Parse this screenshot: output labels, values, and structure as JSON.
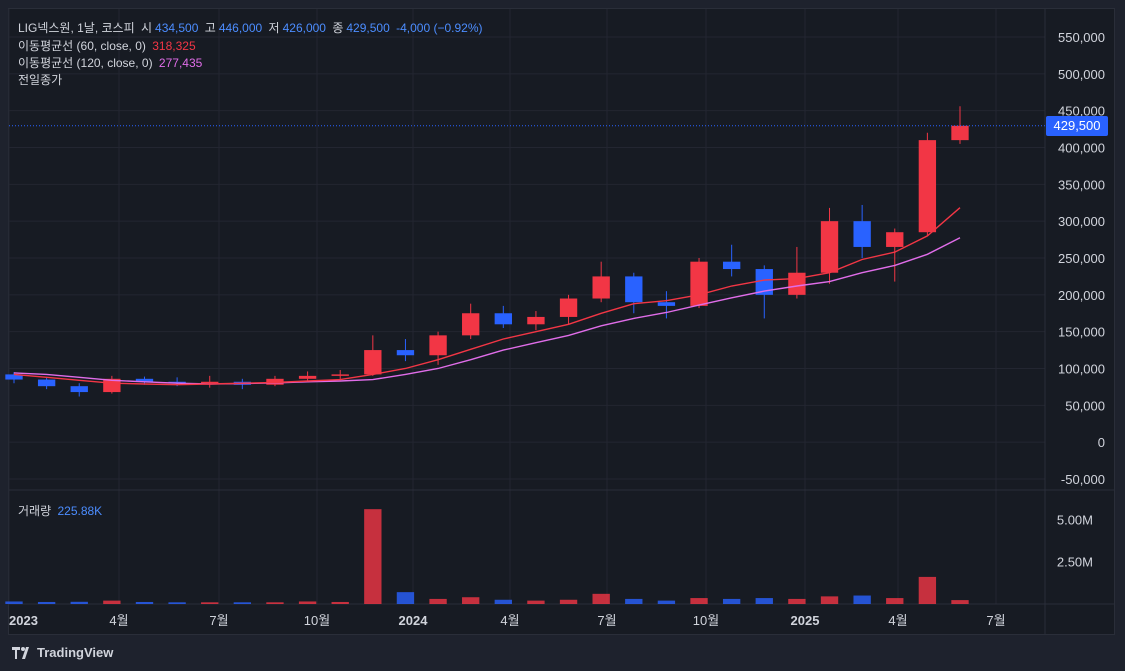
{
  "legend": {
    "symbol": "LIG넥스원, 1날, 코스피",
    "open_label": "시",
    "open": "434,500",
    "high_label": "고",
    "high": "446,000",
    "low_label": "저",
    "low": "426,000",
    "close_label": "종",
    "close": "429,500",
    "change": "-4,000 (−0.92%)",
    "ma60_label": "이동평균선 (60, close, 0)",
    "ma60_value": "318,325",
    "ma120_label": "이동평균선 (120, close, 0)",
    "ma120_value": "277,435",
    "prev_close_label": "전일종가",
    "volume_label": "거래량",
    "volume_value": "225.88K"
  },
  "price_tag": "429,500",
  "footer_brand": "TradingView",
  "colors": {
    "up": "#f23645",
    "down": "#2962ff",
    "ma60": "#f23645",
    "ma120": "#e06de9",
    "background": "#171b23",
    "grid": "#232631",
    "axis_text": "#d1d4dc"
  },
  "chart_data": {
    "type": "candlestick",
    "title": "LIG넥스원, 1날, 코스피",
    "y_axis_labels": [
      "550,000",
      "500,000",
      "450,000",
      "400,000",
      "350,000",
      "300,000",
      "250,000",
      "200,000",
      "150,000",
      "100,000",
      "50,000",
      "0",
      "-50,000"
    ],
    "ylim": [
      -50000,
      550000
    ],
    "volume_axis_labels": [
      "5.00M",
      "2.50M"
    ],
    "x_axis_labels": [
      "2023",
      "4월",
      "7월",
      "10월",
      "2024",
      "4월",
      "7월",
      "10월",
      "2025",
      "4월",
      "7월"
    ],
    "last_close": 429500,
    "price_series": [
      {
        "date": "2023-01",
        "open": 92000,
        "high": 95000,
        "low": 80000,
        "close": 85000
      },
      {
        "date": "2023-02",
        "open": 85000,
        "high": 88000,
        "low": 72000,
        "close": 76000
      },
      {
        "date": "2023-03",
        "open": 76000,
        "high": 80000,
        "low": 62000,
        "close": 68000
      },
      {
        "date": "2023-04",
        "open": 68000,
        "high": 90000,
        "low": 66000,
        "close": 86000
      },
      {
        "date": "2023-05",
        "open": 86000,
        "high": 89000,
        "low": 78000,
        "close": 82000
      },
      {
        "date": "2023-06",
        "open": 82000,
        "high": 88000,
        "low": 76000,
        "close": 80000
      },
      {
        "date": "2023-07",
        "open": 80000,
        "high": 90000,
        "low": 74000,
        "close": 82000
      },
      {
        "date": "2023-08",
        "open": 82000,
        "high": 86000,
        "low": 72000,
        "close": 78000
      },
      {
        "date": "2023-09",
        "open": 78000,
        "high": 90000,
        "low": 76000,
        "close": 86000
      },
      {
        "date": "2023-10",
        "open": 86000,
        "high": 96000,
        "low": 82000,
        "close": 90000
      },
      {
        "date": "2023-11",
        "open": 90000,
        "high": 98000,
        "low": 84000,
        "close": 92000
      },
      {
        "date": "2023-12",
        "open": 92000,
        "high": 145000,
        "low": 90000,
        "close": 125000
      },
      {
        "date": "2024-01",
        "open": 125000,
        "high": 140000,
        "low": 110000,
        "close": 118000
      },
      {
        "date": "2024-02",
        "open": 118000,
        "high": 150000,
        "low": 105000,
        "close": 145000
      },
      {
        "date": "2024-03",
        "open": 145000,
        "high": 188000,
        "low": 140000,
        "close": 175000
      },
      {
        "date": "2024-04",
        "open": 175000,
        "high": 185000,
        "low": 155000,
        "close": 160000
      },
      {
        "date": "2024-05",
        "open": 160000,
        "high": 178000,
        "low": 152000,
        "close": 170000
      },
      {
        "date": "2024-06",
        "open": 170000,
        "high": 200000,
        "low": 160000,
        "close": 195000
      },
      {
        "date": "2024-07",
        "open": 195000,
        "high": 245000,
        "low": 190000,
        "close": 225000
      },
      {
        "date": "2024-08",
        "open": 225000,
        "high": 230000,
        "low": 175000,
        "close": 190000
      },
      {
        "date": "2024-09",
        "open": 190000,
        "high": 205000,
        "low": 168000,
        "close": 185000
      },
      {
        "date": "2024-10",
        "open": 185000,
        "high": 250000,
        "low": 182000,
        "close": 245000
      },
      {
        "date": "2024-11",
        "open": 245000,
        "high": 268000,
        "low": 225000,
        "close": 235000
      },
      {
        "date": "2024-12",
        "open": 235000,
        "high": 240000,
        "low": 168000,
        "close": 200000
      },
      {
        "date": "2025-01",
        "open": 200000,
        "high": 265000,
        "low": 195000,
        "close": 230000
      },
      {
        "date": "2025-02",
        "open": 230000,
        "high": 318000,
        "low": 215000,
        "close": 300000
      },
      {
        "date": "2025-03",
        "open": 300000,
        "high": 322000,
        "low": 250000,
        "close": 265000
      },
      {
        "date": "2025-04",
        "open": 265000,
        "high": 290000,
        "low": 218000,
        "close": 285000
      },
      {
        "date": "2025-05",
        "open": 285000,
        "high": 420000,
        "low": 280000,
        "close": 410000
      },
      {
        "date": "2025-06",
        "open": 410000,
        "high": 456000,
        "low": 405000,
        "close": 429500
      }
    ],
    "ma60": [
      92000,
      88000,
      84000,
      80000,
      79000,
      78000,
      79000,
      80000,
      81000,
      83000,
      85000,
      92000,
      100000,
      112000,
      126000,
      140000,
      150000,
      160000,
      175000,
      188000,
      192000,
      200000,
      212000,
      220000,
      222000,
      230000,
      248000,
      258000,
      280000,
      318325
    ],
    "ma120": [
      94000,
      92000,
      88000,
      84000,
      82000,
      80000,
      79000,
      79500,
      80500,
      82000,
      83000,
      85000,
      92000,
      100000,
      112000,
      125000,
      135000,
      145000,
      158000,
      168000,
      176000,
      186000,
      196000,
      205000,
      212000,
      218000,
      230000,
      240000,
      255000,
      277435
    ],
    "volume": [
      {
        "date": "2023-01",
        "value": 0.15
      },
      {
        "date": "2023-02",
        "value": 0.12
      },
      {
        "date": "2023-03",
        "value": 0.13
      },
      {
        "date": "2023-04",
        "value": 0.2
      },
      {
        "date": "2023-05",
        "value": 0.12
      },
      {
        "date": "2023-06",
        "value": 0.1
      },
      {
        "date": "2023-07",
        "value": 0.1
      },
      {
        "date": "2023-08",
        "value": 0.1
      },
      {
        "date": "2023-09",
        "value": 0.1
      },
      {
        "date": "2023-10",
        "value": 0.15
      },
      {
        "date": "2023-11",
        "value": 0.12
      },
      {
        "date": "2023-12",
        "value": 5.6
      },
      {
        "date": "2024-01",
        "value": 0.7
      },
      {
        "date": "2024-02",
        "value": 0.3
      },
      {
        "date": "2024-03",
        "value": 0.4
      },
      {
        "date": "2024-04",
        "value": 0.25
      },
      {
        "date": "2024-05",
        "value": 0.2
      },
      {
        "date": "2024-06",
        "value": 0.25
      },
      {
        "date": "2024-07",
        "value": 0.6
      },
      {
        "date": "2024-08",
        "value": 0.3
      },
      {
        "date": "2024-09",
        "value": 0.2
      },
      {
        "date": "2024-10",
        "value": 0.35
      },
      {
        "date": "2024-11",
        "value": 0.3
      },
      {
        "date": "2024-12",
        "value": 0.35
      },
      {
        "date": "2025-01",
        "value": 0.3
      },
      {
        "date": "2025-02",
        "value": 0.45
      },
      {
        "date": "2025-03",
        "value": 0.5
      },
      {
        "date": "2025-04",
        "value": 0.35
      },
      {
        "date": "2025-05",
        "value": 1.6
      },
      {
        "date": "2025-06",
        "value": 0.23
      }
    ],
    "grid": true
  }
}
